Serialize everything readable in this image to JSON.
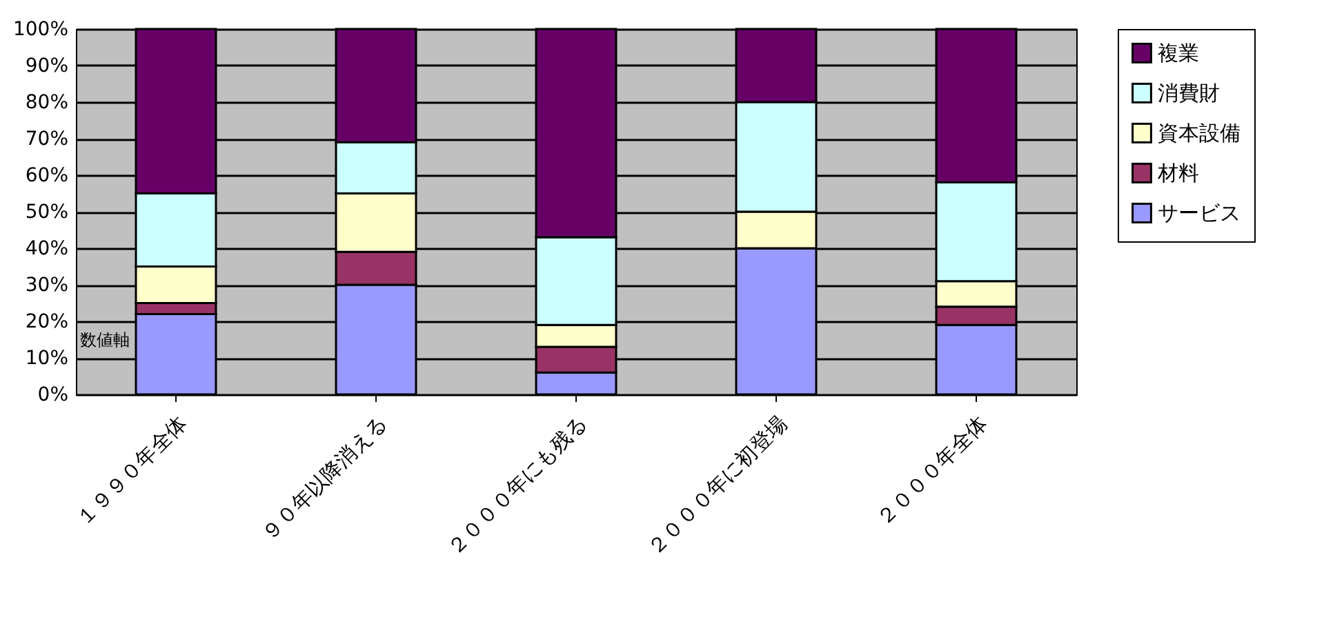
{
  "chart_data": {
    "type": "bar",
    "stacked": true,
    "categories": [
      "１９９０年全体",
      "９０年以降消える",
      "２０００年にも残る",
      "２０００年に初登場",
      "２０００年全体"
    ],
    "series": [
      {
        "name": "サービス",
        "color": "#9999ff",
        "values": [
          22,
          30,
          6,
          40,
          19
        ]
      },
      {
        "name": "材料",
        "color": "#993366",
        "values": [
          3,
          9,
          7,
          0,
          5
        ]
      },
      {
        "name": "資本設備",
        "color": "#ffffcc",
        "values": [
          10,
          16,
          6,
          10,
          7
        ]
      },
      {
        "name": "消費財",
        "color": "#ccffff",
        "values": [
          20,
          14,
          24,
          30,
          27
        ]
      },
      {
        "name": "複業",
        "color": "#660066",
        "values": [
          45,
          31,
          57,
          20,
          42
        ]
      }
    ],
    "ylim": [
      0,
      100
    ],
    "yticks": [
      {
        "value": 0,
        "label": "0%"
      },
      {
        "value": 10,
        "label": "10%"
      },
      {
        "value": 20,
        "label": "20%"
      },
      {
        "value": 30,
        "label": "30%"
      },
      {
        "value": 40,
        "label": "40%"
      },
      {
        "value": 50,
        "label": "50%"
      },
      {
        "value": 60,
        "label": "60%"
      },
      {
        "value": 70,
        "label": "70%"
      },
      {
        "value": 80,
        "label": "80%"
      },
      {
        "value": 90,
        "label": "90%"
      },
      {
        "value": 100,
        "label": "100%"
      }
    ],
    "grid": "y",
    "legend": "right",
    "annotations": [
      "数値軸"
    ]
  }
}
